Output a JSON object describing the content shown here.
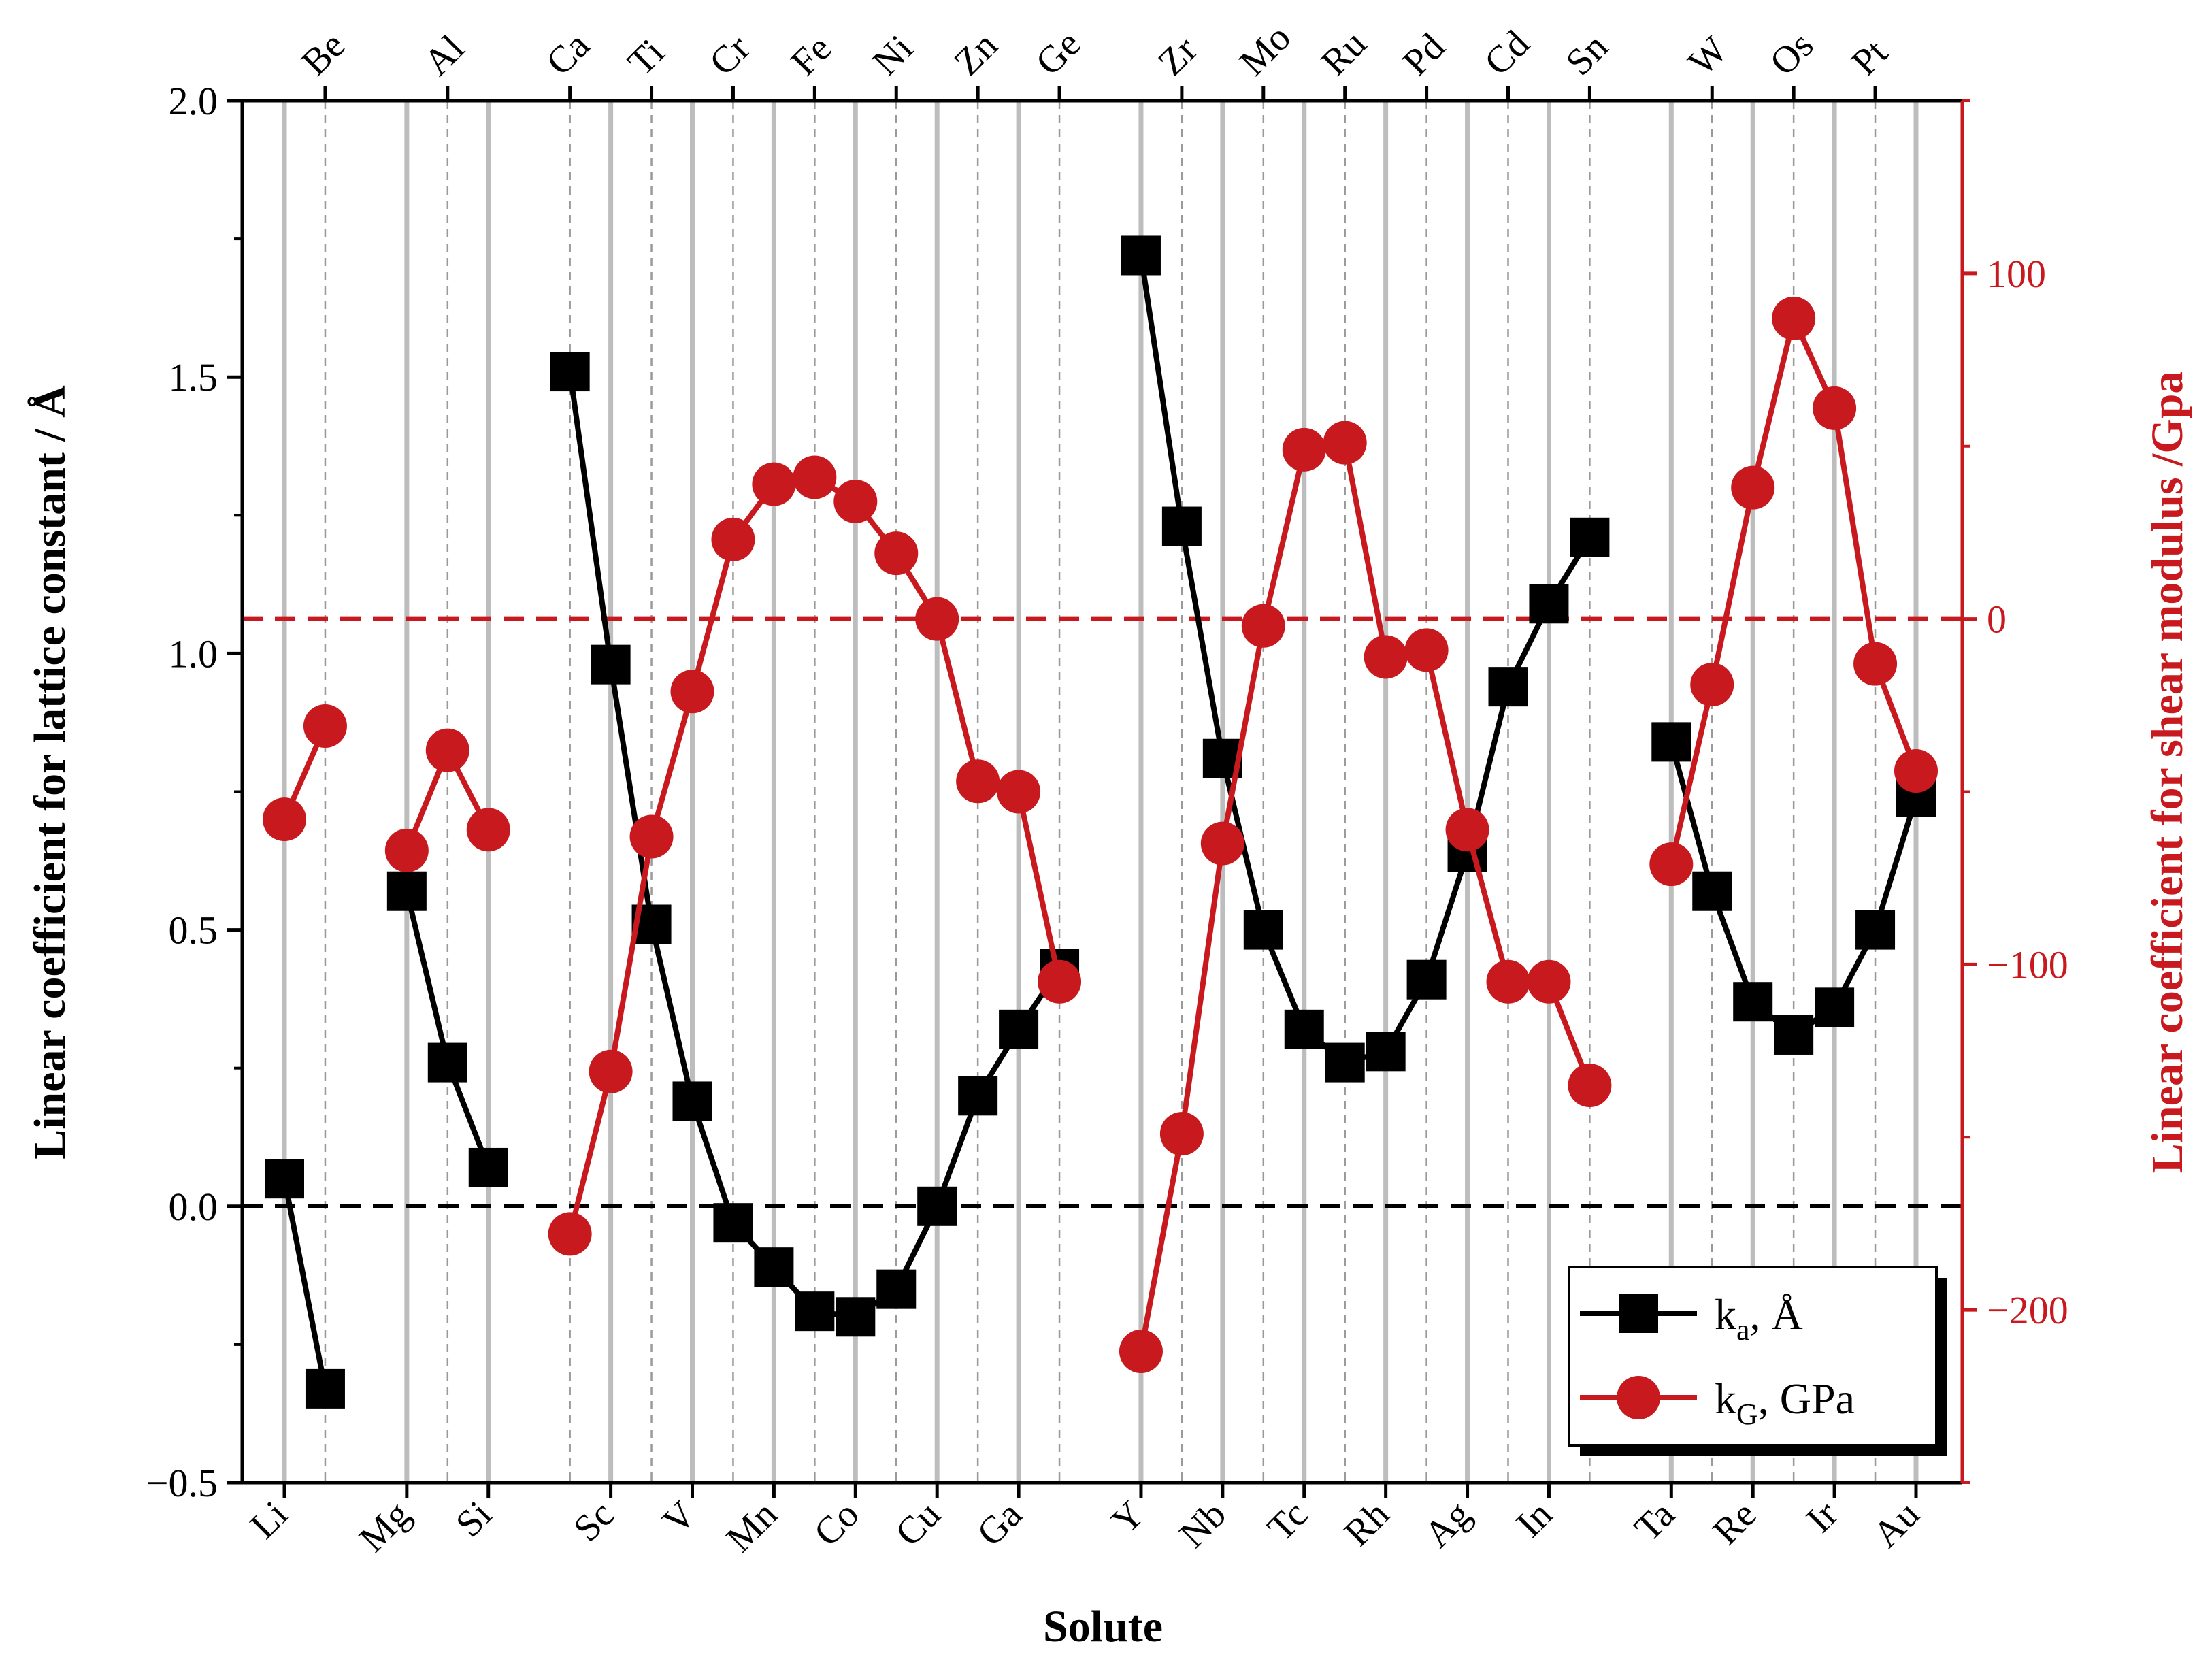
{
  "chart_data": {
    "type": "line",
    "xlabel": "Solute",
    "ylabel_left": "Linear coefficient for lattice constant / Å",
    "ylabel_right": "Linear coefficient for shear modulus /Gpa",
    "ylim_left": [
      -0.5,
      2.0
    ],
    "ylim_right": [
      -250,
      150
    ],
    "yticks_left": [
      "−0.5",
      "0.0",
      "0.5",
      "1.0",
      "1.5",
      "2.0"
    ],
    "yticks_left_values": [
      -0.5,
      0.0,
      0.5,
      1.0,
      1.5,
      2.0
    ],
    "yticks_right": [
      "−200",
      "−100",
      "0",
      "100"
    ],
    "yticks_right_values": [
      -200,
      -100,
      0,
      100
    ],
    "bottom_labels": [
      "Li",
      "Mg",
      "Si",
      "Sc",
      "V",
      "Mn",
      "Co",
      "Cu",
      "Ga",
      "Y",
      "Nb",
      "Tc",
      "Rh",
      "Ag",
      "In",
      "Ta",
      "Re",
      "Ir",
      "Au"
    ],
    "top_labels": [
      "Be",
      "Al",
      "Ca",
      "Ti",
      "Cr",
      "Fe",
      "Ni",
      "Zn",
      "Ge",
      "Zr",
      "Mo",
      "Ru",
      "Pd",
      "Cd",
      "Sn",
      "W",
      "Os",
      "Pt"
    ],
    "categories": [
      "Li",
      "Be",
      "Mg",
      "Al",
      "Si",
      "Ca",
      "Sc",
      "Ti",
      "V",
      "Cr",
      "Mn",
      "Fe",
      "Co",
      "Ni",
      "Cu",
      "Zn",
      "Ga",
      "Ge",
      "Y",
      "Zr",
      "Nb",
      "Mo",
      "Tc",
      "Ru",
      "Rh",
      "Pd",
      "Ag",
      "Cd",
      "In",
      "Sn",
      "Ta",
      "W",
      "Re",
      "Os",
      "Ir",
      "Pt",
      "Au"
    ],
    "category_positions": [
      0,
      1,
      3,
      4,
      5,
      7,
      8,
      9,
      10,
      11,
      12,
      13,
      14,
      15,
      16,
      17,
      18,
      19,
      21,
      22,
      23,
      24,
      25,
      26,
      27,
      28,
      29,
      30,
      31,
      32,
      34,
      35,
      36,
      37,
      38,
      39,
      40
    ],
    "groups": [
      [
        "Li",
        "Be"
      ],
      [
        "Mg",
        "Al",
        "Si"
      ],
      [
        "Ca",
        "Sc",
        "Ti",
        "V",
        "Cr",
        "Mn",
        "Fe",
        "Co",
        "Ni",
        "Cu",
        "Zn",
        "Ga",
        "Ge"
      ],
      [
        "Y",
        "Zr",
        "Nb",
        "Mo",
        "Tc",
        "Ru",
        "Rh",
        "Pd",
        "Ag",
        "Cd",
        "In",
        "Sn"
      ],
      [
        "Ta",
        "W",
        "Re",
        "Os",
        "Ir",
        "Pt",
        "Au"
      ]
    ],
    "series": [
      {
        "name": "k_a, Å",
        "axis": "left",
        "color": "#000000",
        "marker": "square",
        "values": {
          "Li": 0.05,
          "Be": -0.33,
          "Mg": 0.57,
          "Al": 0.26,
          "Si": 0.07,
          "Ca": 1.51,
          "Sc": 0.98,
          "Ti": 0.51,
          "V": 0.19,
          "Cr": -0.03,
          "Mn": -0.11,
          "Fe": -0.19,
          "Co": -0.2,
          "Ni": -0.15,
          "Cu": 0.0,
          "Zn": 0.2,
          "Ga": 0.32,
          "Ge": 0.43,
          "Y": 1.72,
          "Zr": 1.23,
          "Nb": 0.81,
          "Mo": 0.5,
          "Tc": 0.32,
          "Ru": 0.26,
          "Rh": 0.28,
          "Pd": 0.41,
          "Ag": 0.64,
          "Cd": 0.94,
          "In": 1.09,
          "Sn": 1.21,
          "Ta": 0.84,
          "W": 0.57,
          "Re": 0.37,
          "Os": 0.31,
          "Ir": 0.36,
          "Pt": 0.5,
          "Au": 0.74
        }
      },
      {
        "name": "k_G, GPa",
        "axis": "right",
        "color": "#C8191E",
        "marker": "circle",
        "values": {
          "Li": -58,
          "Be": -31,
          "Mg": -67,
          "Al": -38,
          "Si": -61,
          "Ca": -178,
          "Sc": -131,
          "Ti": -63,
          "V": -21,
          "Cr": 23,
          "Mn": 39,
          "Fe": 41,
          "Co": 34,
          "Ni": 19,
          "Cu": 0,
          "Zn": -47,
          "Ga": -50,
          "Ge": -105,
          "Y": -212,
          "Zr": -149,
          "Nb": -65,
          "Mo": -2,
          "Tc": 49,
          "Ru": 51,
          "Rh": -11,
          "Pd": -9,
          "Ag": -61,
          "Cd": -105,
          "In": -105,
          "Sn": -135,
          "Ta": -71,
          "W": -19,
          "Re": 38,
          "Os": 87,
          "Ir": 61,
          "Pt": -13,
          "Au": -44
        }
      }
    ],
    "reference_lines": [
      {
        "axis": "left",
        "value": 0.0,
        "style": "dashed",
        "color": "#000000"
      },
      {
        "axis": "right",
        "value": 0,
        "style": "dashed",
        "color": "#C8191E"
      }
    ],
    "legend": {
      "position": "bottom-right",
      "entries": [
        {
          "main": "k",
          "sub": "a",
          "rest": ", Å"
        },
        {
          "main": "k",
          "sub": "G",
          "rest": ", GPa"
        }
      ]
    }
  },
  "colors": {
    "black_series": "#000000",
    "red_series": "#C8191E",
    "solid_gridline": "#BDBDBD",
    "dashed_gridline": "#9A9A9A"
  }
}
